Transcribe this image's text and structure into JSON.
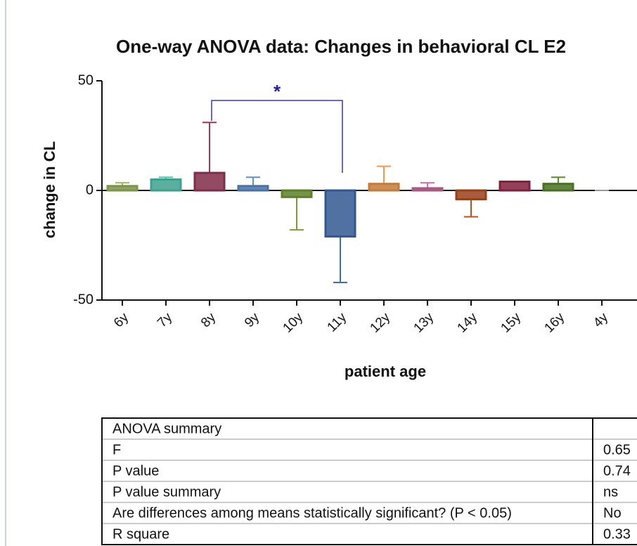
{
  "chart_data": {
    "type": "bar",
    "title": "One-way ANOVA data: Changes in behavioral CL E2",
    "x_label": "patient age",
    "y_label": "change in CL",
    "categories": [
      "6y",
      "7y",
      "8y",
      "9y",
      "10y",
      "11y",
      "12y",
      "13y",
      "14y",
      "15y",
      "16y",
      "4y"
    ],
    "values": [
      2,
      5,
      8,
      2,
      -3,
      -21,
      3,
      1,
      -4,
      4,
      3,
      0
    ],
    "errors": [
      1.5,
      1,
      23,
      4,
      15,
      21,
      8,
      2.5,
      8,
      0,
      3,
      0
    ],
    "colors": [
      "#9bbb59",
      "#4ec9b0",
      "#a0365a",
      "#5b8fd0",
      "#76a030",
      "#3d6eb5",
      "#f59a4a",
      "#d36fa0",
      "#c0501e",
      "#a0284e",
      "#5a8c2a",
      "#999999"
    ],
    "ylim": [
      -50,
      50
    ],
    "yticks": [
      -50,
      0,
      50
    ],
    "annotations": [
      "*"
    ]
  },
  "table": {
    "rows": [
      [
        "ANOVA summary"
      ],
      [
        "F",
        "0.65"
      ],
      [
        "P value",
        "0.74"
      ],
      [
        "P value summary",
        "ns"
      ],
      [
        "Are differences among means statistically significant? (P < 0.05)",
        "No"
      ],
      [
        "R square",
        "0.33"
      ]
    ]
  }
}
